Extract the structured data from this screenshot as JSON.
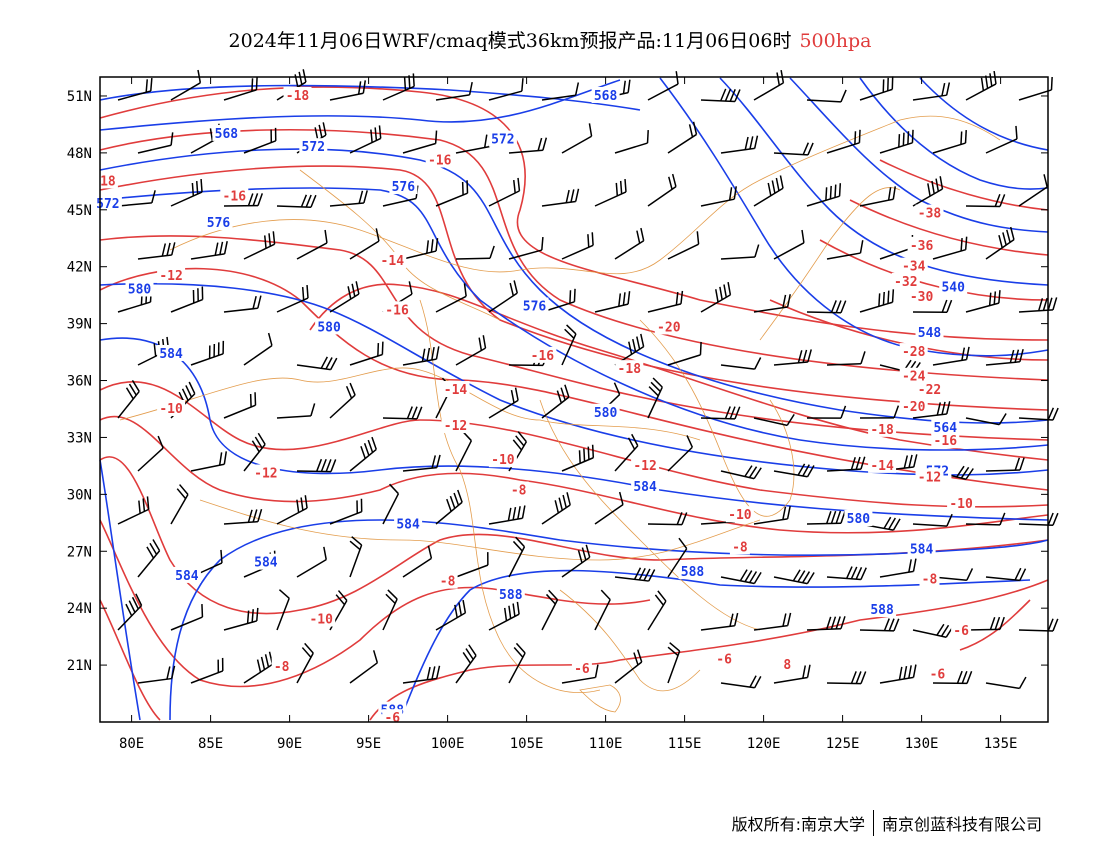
{
  "title": {
    "main": "2024年11月06日WRF/cmaq模式36km预报产品:11月06日06时",
    "level": "500hpa",
    "level_color": "#e03c3c"
  },
  "axes": {
    "lat_labels": [
      "51N",
      "48N",
      "45N",
      "42N",
      "39N",
      "36N",
      "33N",
      "30N",
      "27N",
      "24N",
      "21N"
    ],
    "lat_values": [
      51,
      48,
      45,
      42,
      39,
      36,
      33,
      30,
      27,
      24,
      21
    ],
    "lon_labels": [
      "80E",
      "85E",
      "90E",
      "95E",
      "100E",
      "105E",
      "110E",
      "115E",
      "120E",
      "125E",
      "130E",
      "135E"
    ],
    "lon_values": [
      80,
      85,
      90,
      95,
      100,
      105,
      110,
      115,
      120,
      125,
      130,
      135
    ],
    "lon_range": [
      78,
      138
    ],
    "lat_range": [
      18,
      52
    ]
  },
  "colors": {
    "geopotential": "#1a3ee8",
    "temperature": "#e03c3c",
    "borders": "#e0923a",
    "barbs": "#000000"
  },
  "height_labels": [
    {
      "text": "568",
      "lon": 110,
      "lat": 51
    },
    {
      "text": "568",
      "lon": 86,
      "lat": 49
    },
    {
      "text": "572",
      "lon": 91.5,
      "lat": 48.3
    },
    {
      "text": "572",
      "lon": 103.5,
      "lat": 48.7
    },
    {
      "text": "572",
      "lon": 78.5,
      "lat": 45.3
    },
    {
      "text": "576",
      "lon": 97.2,
      "lat": 46.2
    },
    {
      "text": "576",
      "lon": 85.5,
      "lat": 44.3
    },
    {
      "text": "580",
      "lon": 80.5,
      "lat": 40.8
    },
    {
      "text": "580",
      "lon": 92.5,
      "lat": 38.8
    },
    {
      "text": "576",
      "lon": 105.5,
      "lat": 39.9
    },
    {
      "text": "584",
      "lon": 82.5,
      "lat": 37.4
    },
    {
      "text": "580",
      "lon": 110,
      "lat": 34.3
    },
    {
      "text": "584",
      "lon": 112.5,
      "lat": 30.4
    },
    {
      "text": "584",
      "lon": 97.5,
      "lat": 28.4
    },
    {
      "text": "584",
      "lon": 88.5,
      "lat": 26.4
    },
    {
      "text": "584",
      "lon": 83.5,
      "lat": 25.7
    },
    {
      "text": "588",
      "lon": 104,
      "lat": 24.7
    },
    {
      "text": "588",
      "lon": 115.5,
      "lat": 25.9
    },
    {
      "text": "588",
      "lon": 127.5,
      "lat": 23.9
    },
    {
      "text": "580",
      "lon": 126,
      "lat": 28.7
    },
    {
      "text": "584",
      "lon": 130,
      "lat": 27.1
    },
    {
      "text": "548",
      "lon": 130.5,
      "lat": 38.5
    },
    {
      "text": "540",
      "lon": 132,
      "lat": 40.9
    },
    {
      "text": "564",
      "lon": 131.5,
      "lat": 33.5
    },
    {
      "text": "572",
      "lon": 131,
      "lat": 31.2
    },
    {
      "text": "588",
      "lon": 96.5,
      "lat": 18.6
    }
  ],
  "temp_labels": [
    {
      "text": "-18",
      "lon": 90.5,
      "lat": 51
    },
    {
      "text": "18",
      "lon": 78.5,
      "lat": 46.5
    },
    {
      "text": "-16",
      "lon": 99.5,
      "lat": 47.6
    },
    {
      "text": "-16",
      "lon": 86.5,
      "lat": 45.7
    },
    {
      "text": "-14",
      "lon": 96.5,
      "lat": 42.3
    },
    {
      "text": "-12",
      "lon": 82.5,
      "lat": 41.5
    },
    {
      "text": "-16",
      "lon": 96.8,
      "lat": 39.7
    },
    {
      "text": "-20",
      "lon": 114,
      "lat": 38.8
    },
    {
      "text": "-16",
      "lon": 106,
      "lat": 37.3
    },
    {
      "text": "-18",
      "lon": 111.5,
      "lat": 36.6
    },
    {
      "text": "-14",
      "lon": 100.5,
      "lat": 35.5
    },
    {
      "text": "-10",
      "lon": 82.5,
      "lat": 34.5
    },
    {
      "text": "-12",
      "lon": 100.5,
      "lat": 33.6
    },
    {
      "text": "-12",
      "lon": 88.5,
      "lat": 31.1
    },
    {
      "text": "-10",
      "lon": 103.5,
      "lat": 31.8
    },
    {
      "text": "-8",
      "lon": 104.5,
      "lat": 30.2
    },
    {
      "text": "-12",
      "lon": 112.5,
      "lat": 31.5
    },
    {
      "text": "-10",
      "lon": 118.5,
      "lat": 28.9
    },
    {
      "text": "-8",
      "lon": 118.5,
      "lat": 27.2
    },
    {
      "text": "-8",
      "lon": 100,
      "lat": 25.4
    },
    {
      "text": "-10",
      "lon": 92,
      "lat": 23.4
    },
    {
      "text": "-8",
      "lon": 89.5,
      "lat": 20.9
    },
    {
      "text": "-6",
      "lon": 108.5,
      "lat": 20.8
    },
    {
      "text": "-6",
      "lon": 117.5,
      "lat": 21.3
    },
    {
      "text": "8",
      "lon": 121.5,
      "lat": 21
    },
    {
      "text": "-6",
      "lon": 96.5,
      "lat": 18.2
    },
    {
      "text": "-38",
      "lon": 130.5,
      "lat": 44.8
    },
    {
      "text": "-36",
      "lon": 130,
      "lat": 43.1
    },
    {
      "text": "-34",
      "lon": 129.5,
      "lat": 42
    },
    {
      "text": "-32",
      "lon": 129,
      "lat": 41.2
    },
    {
      "text": "-30",
      "lon": 130,
      "lat": 40.4
    },
    {
      "text": "-28",
      "lon": 129.5,
      "lat": 37.5
    },
    {
      "text": "-24",
      "lon": 129.5,
      "lat": 36.2
    },
    {
      "text": "-22",
      "lon": 130.5,
      "lat": 35.5
    },
    {
      "text": "-20",
      "lon": 129.5,
      "lat": 34.6
    },
    {
      "text": "-18",
      "lon": 127.5,
      "lat": 33.4
    },
    {
      "text": "-16",
      "lon": 131.5,
      "lat": 32.8
    },
    {
      "text": "-14",
      "lon": 127.5,
      "lat": 31.5
    },
    {
      "text": "-12",
      "lon": 130.5,
      "lat": 30.9
    },
    {
      "text": "-10",
      "lon": 132.5,
      "lat": 29.5
    },
    {
      "text": "-8",
      "lon": 130.5,
      "lat": 25.5
    },
    {
      "text": "-6",
      "lon": 132.5,
      "lat": 22.8
    },
    {
      "text": "-6",
      "lon": 131,
      "lat": 20.5
    }
  ],
  "footer": {
    "left": "版权所有:南京大学",
    "right": "南京创蓝科技有限公司"
  }
}
